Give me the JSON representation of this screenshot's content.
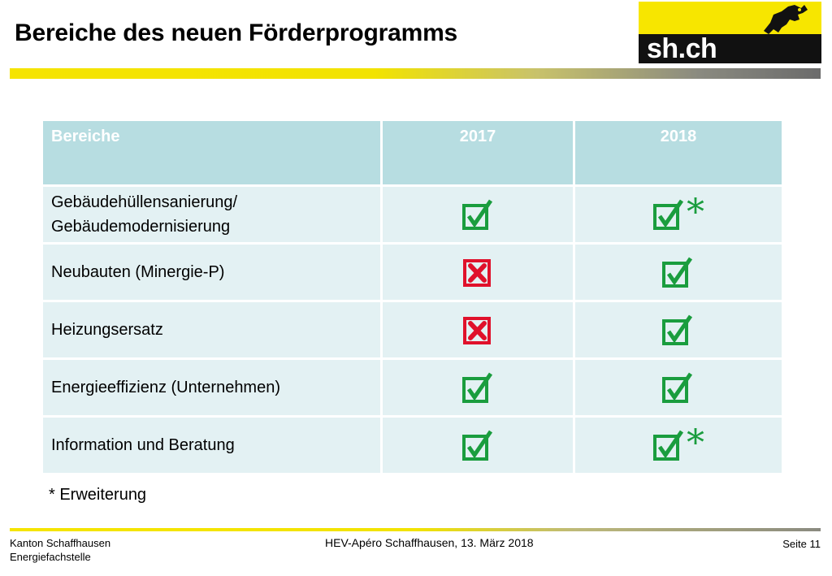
{
  "header": {
    "title": "Bereiche des neuen Förderprogramms",
    "logo_text": "sh.ch",
    "logo_icon": "ram-icon"
  },
  "table": {
    "headers": [
      "Bereiche",
      "2017",
      "2018"
    ],
    "rows": [
      {
        "label": "Gebäudehüllensanierung/\nGebäudemodernisierung",
        "y2017": "check",
        "y2018": "check",
        "star2018": "*"
      },
      {
        "label": "Neubauten (Minergie-P)",
        "y2017": "cross",
        "y2018": "check",
        "star2018": ""
      },
      {
        "label": "Heizungsersatz",
        "y2017": "cross",
        "y2018": "check",
        "star2018": ""
      },
      {
        "label": "Energieeffizienz (Unternehmen)",
        "y2017": "check",
        "y2018": "check",
        "star2018": ""
      },
      {
        "label": "Information und Beratung",
        "y2017": "check",
        "y2018": "check",
        "star2018": "*"
      }
    ]
  },
  "note": "* Erweiterung",
  "footer": {
    "org_line1": "Kanton Schaffhausen",
    "org_line2": "Energiefachstelle",
    "event": "HEV-Apéro Schaffhausen, 13. März 2018",
    "page": "Seite 11"
  },
  "colors": {
    "check": "#1a9d3e",
    "cross": "#e0112b",
    "header_bg": "#b7dde1",
    "row_bg": "#e3f1f3",
    "brand_yellow": "#f7e600"
  }
}
